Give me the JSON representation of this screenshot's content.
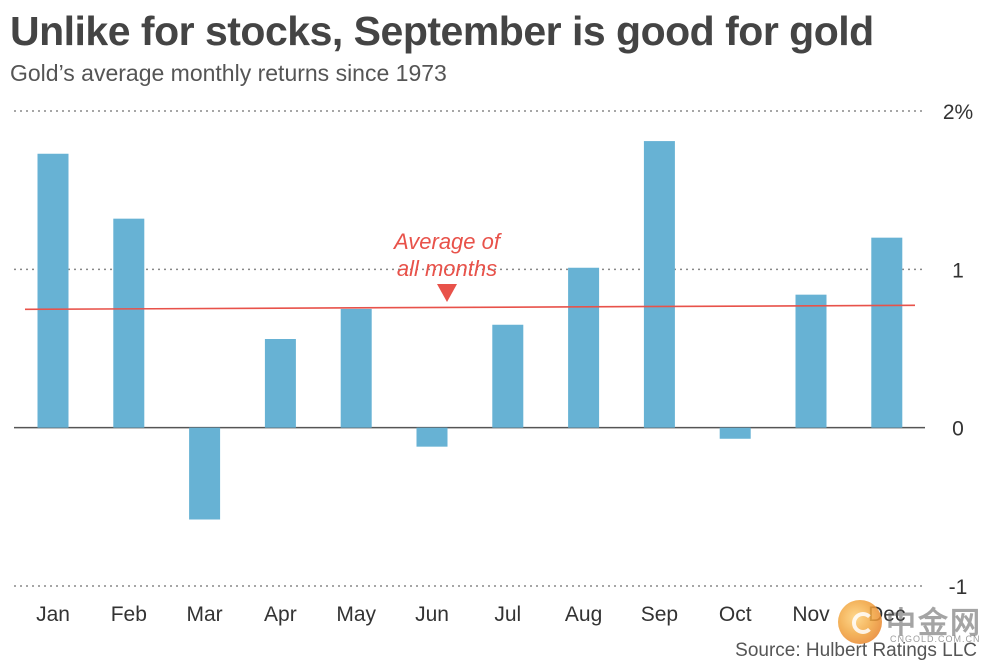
{
  "header": {
    "title": "Unlike for stocks, September is good for gold",
    "subtitle": "Gold’s average monthly returns since 1973"
  },
  "source": "Source: Hulbert Ratings LLC",
  "watermark": {
    "text": "中金网",
    "sub": "CNGOLD.COM.CN"
  },
  "colors": {
    "bar": "#67b2d4",
    "average_line": "#e8524a",
    "axis": "#555555",
    "grid": "#888888"
  },
  "chart_data": {
    "type": "bar",
    "title": "Unlike for stocks, September is good for gold",
    "subtitle": "Gold’s average monthly returns since 1973",
    "categories": [
      "Jan",
      "Feb",
      "Mar",
      "Apr",
      "May",
      "Jun",
      "Jul",
      "Aug",
      "Sep",
      "Oct",
      "Nov",
      "Dec"
    ],
    "values": [
      1.73,
      1.32,
      -0.58,
      0.56,
      0.75,
      -0.12,
      0.65,
      1.01,
      1.81,
      -0.07,
      0.84,
      1.2
    ],
    "ylim": [
      -1,
      2
    ],
    "yticks": [
      {
        "value": 2,
        "label": "2%"
      },
      {
        "value": 1,
        "label": "1"
      },
      {
        "value": 0,
        "label": "0"
      },
      {
        "value": -1,
        "label": "-1"
      }
    ],
    "grid": true,
    "average": {
      "value": 0.76,
      "label_line1": "Average of",
      "label_line2": "all months"
    }
  }
}
